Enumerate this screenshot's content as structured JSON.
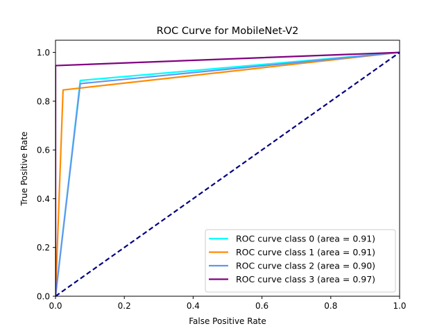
{
  "chart_data": {
    "type": "line",
    "title": "ROC Curve for MobileNet-V2",
    "xlabel": "False Positive Rate",
    "ylabel": "True Positive Rate",
    "xlim": [
      0.0,
      1.0
    ],
    "ylim": [
      0.0,
      1.05
    ],
    "xticks": [
      "0.0",
      "0.2",
      "0.4",
      "0.6",
      "0.8",
      "1.0"
    ],
    "xtick_values": [
      0.0,
      0.2,
      0.4,
      0.6,
      0.8,
      1.0
    ],
    "yticks": [
      "0.0",
      "0.2",
      "0.4",
      "0.6",
      "0.8",
      "1.0"
    ],
    "ytick_values": [
      0.0,
      0.2,
      0.4,
      0.6,
      0.8,
      1.0
    ],
    "grid": false,
    "legend_position": "lower-right",
    "series": [
      {
        "name": "ROC curve class 0 (area = 0.91)",
        "color": "#00ffff",
        "x": [
          0.0,
          0.072,
          1.0
        ],
        "y": [
          0.0,
          0.885,
          1.0
        ]
      },
      {
        "name": "ROC curve class 1 (area = 0.91)",
        "color": "#ff8c00",
        "x": [
          0.0,
          0.022,
          1.0
        ],
        "y": [
          0.0,
          0.846,
          1.0
        ]
      },
      {
        "name": "ROC curve class 2 (area = 0.90)",
        "color": "#6495ed",
        "x": [
          0.0,
          0.072,
          1.0
        ],
        "y": [
          0.0,
          0.872,
          1.0
        ]
      },
      {
        "name": "ROC curve class 3 (area = 0.97)",
        "color": "#800080",
        "x": [
          0.0,
          0.0,
          1.0
        ],
        "y": [
          0.0,
          0.946,
          1.0
        ]
      }
    ],
    "reference_line": {
      "color": "#000080",
      "style": "dashed",
      "x": [
        0.0,
        1.0
      ],
      "y": [
        0.0,
        1.0
      ]
    }
  }
}
